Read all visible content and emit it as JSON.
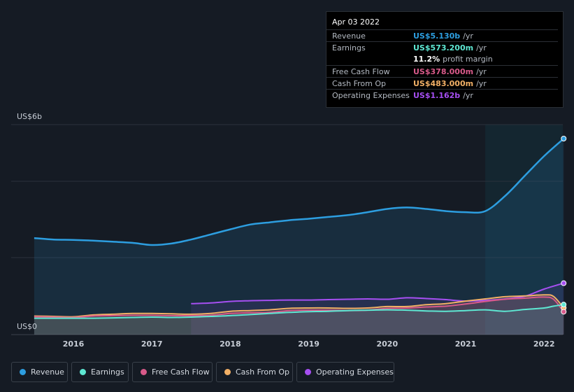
{
  "tooltip": {
    "date": "Apr 03 2022",
    "rows": [
      {
        "label": "Revenue",
        "value": "US$5.130b",
        "unit": "/yr",
        "color": "#2d9ee0"
      },
      {
        "label": "Earnings",
        "value": "US$573.200m",
        "unit": "/yr",
        "color": "#5ee8d3"
      },
      {
        "label": "",
        "value": "11.2%",
        "unit": "profit margin",
        "color": "#ffffff"
      },
      {
        "label": "Free Cash Flow",
        "value": "US$378.000m",
        "unit": "/yr",
        "color": "#d85a8a"
      },
      {
        "label": "Cash From Op",
        "value": "US$483.000m",
        "unit": "/yr",
        "color": "#f2b066"
      },
      {
        "label": "Operating Expenses",
        "value": "US$1.162b",
        "unit": "/yr",
        "color": "#a64ff2"
      }
    ]
  },
  "legend": [
    {
      "label": "Revenue",
      "color": "#2d9ee0"
    },
    {
      "label": "Earnings",
      "color": "#5ee8d3"
    },
    {
      "label": "Free Cash Flow",
      "color": "#d85a8a"
    },
    {
      "label": "Cash From Op",
      "color": "#f2b066"
    },
    {
      "label": "Operating Expenses",
      "color": "#a64ff2"
    }
  ],
  "chart_data": {
    "type": "line",
    "y_axis_labels": [
      "US$6b",
      "US$0"
    ],
    "ylim": [
      0,
      5.5
    ],
    "x_ticks": [
      {
        "label": "2016",
        "x": 2016.0
      },
      {
        "label": "2017",
        "x": 2017.0
      },
      {
        "label": "2018",
        "x": 2018.0
      },
      {
        "label": "2019",
        "x": 2019.0
      },
      {
        "label": "2020",
        "x": 2020.0
      },
      {
        "label": "2021",
        "x": 2021.0
      },
      {
        "label": "2022",
        "x": 2022.0
      }
    ],
    "xlim": [
      2015.4,
      2022.3
    ],
    "highlight_from": 2021.25,
    "grid": true,
    "series": [
      {
        "name": "Revenue",
        "color": "#2d9ee0",
        "x": [
          2015.5,
          2015.75,
          2016.0,
          2016.25,
          2016.5,
          2016.75,
          2017.0,
          2017.25,
          2017.5,
          2017.75,
          2018.0,
          2018.25,
          2018.5,
          2018.75,
          2019.0,
          2019.25,
          2019.5,
          2019.75,
          2020.0,
          2020.25,
          2020.5,
          2020.75,
          2021.0,
          2021.25,
          2021.5,
          2021.75,
          2022.0,
          2022.25
        ],
        "y": [
          2.4,
          2.36,
          2.35,
          2.33,
          2.3,
          2.27,
          2.21,
          2.25,
          2.36,
          2.5,
          2.64,
          2.77,
          2.83,
          2.89,
          2.93,
          2.98,
          3.03,
          3.11,
          3.2,
          3.24,
          3.2,
          3.14,
          3.11,
          3.14,
          3.55,
          4.1,
          4.65,
          5.13
        ]
      },
      {
        "name": "Earnings",
        "color": "#5ee8d3",
        "x": [
          2015.5,
          2015.75,
          2016.0,
          2016.25,
          2016.5,
          2016.75,
          2017.0,
          2017.25,
          2017.5,
          2017.75,
          2018.0,
          2018.25,
          2018.5,
          2018.75,
          2019.0,
          2019.25,
          2019.5,
          2019.75,
          2020.0,
          2020.25,
          2020.5,
          2020.75,
          2021.0,
          2021.25,
          2021.5,
          2021.75,
          2022.0,
          2022.12,
          2022.25
        ],
        "y": [
          0.2,
          0.2,
          0.2,
          0.2,
          0.21,
          0.22,
          0.23,
          0.22,
          0.23,
          0.25,
          0.27,
          0.3,
          0.33,
          0.36,
          0.38,
          0.39,
          0.41,
          0.42,
          0.43,
          0.42,
          0.4,
          0.39,
          0.41,
          0.43,
          0.39,
          0.44,
          0.48,
          0.53,
          0.573
        ]
      },
      {
        "name": "Free Cash Flow",
        "color": "#d85a8a",
        "x": [
          2015.5,
          2015.75,
          2016.0,
          2016.25,
          2016.5,
          2016.75,
          2017.0,
          2017.25,
          2017.5,
          2017.75,
          2018.0,
          2018.25,
          2018.5,
          2018.75,
          2019.0,
          2019.25,
          2019.5,
          2019.75,
          2020.0,
          2020.25,
          2020.5,
          2020.75,
          2021.0,
          2021.25,
          2021.5,
          2021.75,
          2022.0,
          2022.12,
          2022.25
        ],
        "y": [
          0.24,
          0.23,
          0.22,
          0.26,
          0.27,
          0.28,
          0.28,
          0.27,
          0.27,
          0.28,
          0.33,
          0.35,
          0.36,
          0.41,
          0.42,
          0.42,
          0.41,
          0.42,
          0.47,
          0.48,
          0.51,
          0.53,
          0.59,
          0.66,
          0.72,
          0.75,
          0.78,
          0.72,
          0.378
        ]
      },
      {
        "name": "Cash From Op",
        "color": "#f2b066",
        "x": [
          2015.5,
          2015.75,
          2016.0,
          2016.25,
          2016.5,
          2016.75,
          2017.0,
          2017.25,
          2017.5,
          2017.75,
          2018.0,
          2018.25,
          2018.5,
          2018.75,
          2019.0,
          2019.25,
          2019.5,
          2019.75,
          2020.0,
          2020.25,
          2020.5,
          2020.75,
          2021.0,
          2021.25,
          2021.5,
          2021.75,
          2022.0,
          2022.12,
          2022.25
        ],
        "y": [
          0.26,
          0.25,
          0.24,
          0.29,
          0.31,
          0.33,
          0.33,
          0.32,
          0.31,
          0.33,
          0.39,
          0.41,
          0.43,
          0.47,
          0.48,
          0.48,
          0.47,
          0.48,
          0.52,
          0.52,
          0.57,
          0.6,
          0.67,
          0.73,
          0.79,
          0.81,
          0.84,
          0.8,
          0.483
        ]
      },
      {
        "name": "Operating Expenses",
        "color": "#a64ff2",
        "x": [
          2017.5,
          2017.75,
          2018.0,
          2018.25,
          2018.5,
          2018.75,
          2019.0,
          2019.25,
          2019.5,
          2019.75,
          2020.0,
          2020.25,
          2020.5,
          2020.75,
          2021.0,
          2021.25,
          2021.5,
          2021.75,
          2022.0,
          2022.25
        ],
        "y": [
          0.6,
          0.62,
          0.66,
          0.68,
          0.69,
          0.7,
          0.7,
          0.71,
          0.72,
          0.73,
          0.72,
          0.76,
          0.74,
          0.71,
          0.67,
          0.69,
          0.73,
          0.8,
          1.0,
          1.162
        ]
      }
    ]
  }
}
